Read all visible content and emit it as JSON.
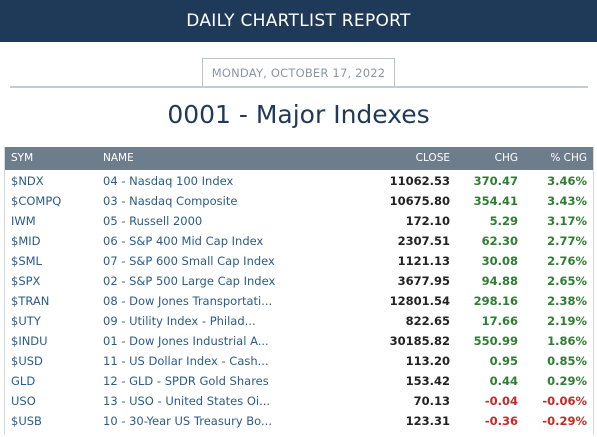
{
  "header": {
    "title": "DAILY CHARTLIST REPORT"
  },
  "report": {
    "date": "MONDAY, OCTOBER 17, 2022",
    "list_title": "0001 - Major Indexes"
  },
  "table": {
    "columns": {
      "sym": "SYM",
      "name": "NAME",
      "close": "CLOSE",
      "chg": "CHG",
      "pct": "% CHG"
    },
    "rows": [
      {
        "sym": "$NDX",
        "name": "04 - Nasdaq 100 Index",
        "close": "11062.53",
        "chg": "370.47",
        "pct": "3.46%",
        "dir": "pos"
      },
      {
        "sym": "$COMPQ",
        "name": "03 - Nasdaq Composite",
        "close": "10675.80",
        "chg": "354.41",
        "pct": "3.43%",
        "dir": "pos"
      },
      {
        "sym": "IWM",
        "name": "05 - Russell 2000",
        "close": "172.10",
        "chg": "5.29",
        "pct": "3.17%",
        "dir": "pos"
      },
      {
        "sym": "$MID",
        "name": "06 - S&P 400 Mid Cap Index",
        "close": "2307.51",
        "chg": "62.30",
        "pct": "2.77%",
        "dir": "pos"
      },
      {
        "sym": "$SML",
        "name": "07 - S&P 600 Small Cap Index",
        "close": "1121.13",
        "chg": "30.08",
        "pct": "2.76%",
        "dir": "pos"
      },
      {
        "sym": "$SPX",
        "name": "02 - S&P 500 Large Cap Index",
        "close": "3677.95",
        "chg": "94.88",
        "pct": "2.65%",
        "dir": "pos"
      },
      {
        "sym": "$TRAN",
        "name": "08 - Dow Jones Transportati...",
        "close": "12801.54",
        "chg": "298.16",
        "pct": "2.38%",
        "dir": "pos"
      },
      {
        "sym": "$UTY",
        "name": "09 - Utility Index - Philad...",
        "close": "822.65",
        "chg": "17.66",
        "pct": "2.19%",
        "dir": "pos"
      },
      {
        "sym": "$INDU",
        "name": "01 - Dow Jones Industrial A...",
        "close": "30185.82",
        "chg": "550.99",
        "pct": "1.86%",
        "dir": "pos"
      },
      {
        "sym": "$USD",
        "name": "11 - US Dollar Index - Cash...",
        "close": "113.20",
        "chg": "0.95",
        "pct": "0.85%",
        "dir": "pos"
      },
      {
        "sym": "GLD",
        "name": "12 - GLD - SPDR Gold Shares",
        "close": "153.42",
        "chg": "0.44",
        "pct": "0.29%",
        "dir": "pos"
      },
      {
        "sym": "USO",
        "name": "13 - USO - United States Oi...",
        "close": "70.13",
        "chg": "-0.04",
        "pct": "-0.06%",
        "dir": "neg"
      },
      {
        "sym": "$USB",
        "name": "10 - 30-Year US Treasury Bo...",
        "close": "123.31",
        "chg": "-0.36",
        "pct": "-0.29%",
        "dir": "neg"
      }
    ]
  }
}
